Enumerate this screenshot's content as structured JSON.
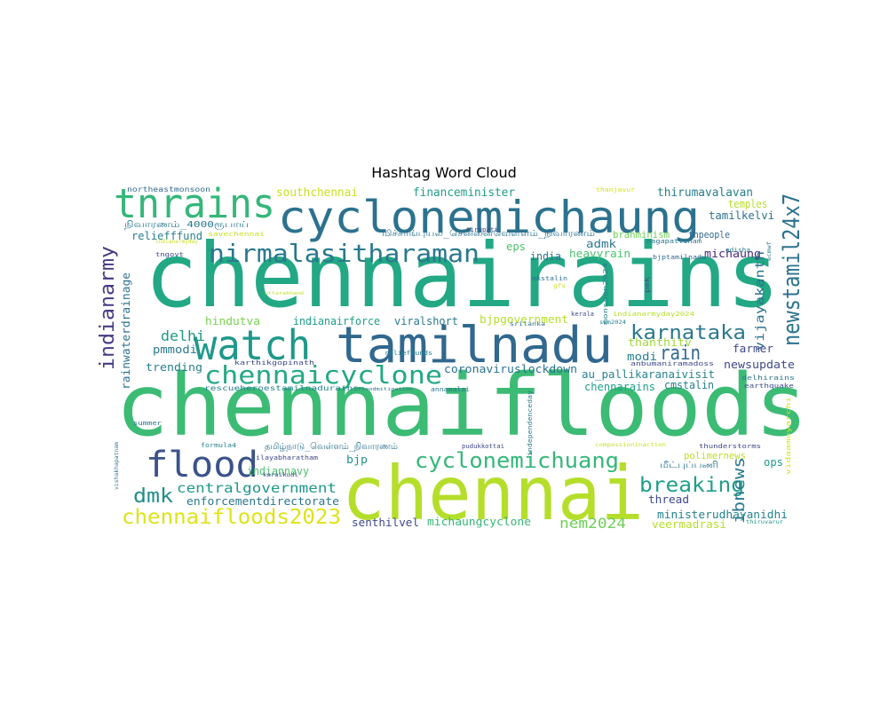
{
  "chart_data": {
    "type": "wordcloud",
    "title": "Hashtag Word Cloud",
    "words": [
      {
        "text": "chennairains",
        "color": "#22a884"
      },
      {
        "text": "chennaifloods",
        "color": "#3cbb75"
      },
      {
        "text": "chennai",
        "color": "#b5de2b"
      },
      {
        "text": "tamilnadu",
        "color": "#31688e"
      },
      {
        "text": "cyclonemichaung",
        "color": "#2c728e"
      },
      {
        "text": "watch",
        "color": "#1f988b"
      },
      {
        "text": "tnrains",
        "color": "#35b779"
      },
      {
        "text": "flood",
        "color": "#3b528b"
      },
      {
        "text": "nirmalasitharaman",
        "color": "#2a788e"
      },
      {
        "text": "chennaicyclone",
        "color": "#22a884"
      },
      {
        "text": "cyclonemichuang",
        "color": "#35b779"
      },
      {
        "text": "newstamil24x7",
        "color": "#2c728e"
      },
      {
        "text": "chennaifloods2023",
        "color": "#dde318"
      },
      {
        "text": "breaking",
        "color": "#1f9e89"
      },
      {
        "text": "karnataka",
        "color": "#2a788e"
      },
      {
        "text": "indianarmy",
        "color": "#443a83"
      },
      {
        "text": "rain",
        "color": "#31688e"
      },
      {
        "text": "dmk",
        "color": "#228c8d"
      },
      {
        "text": "centralgovernment",
        "color": "#1f988b"
      },
      {
        "text": "ibnews",
        "color": "#2a788e"
      },
      {
        "text": "nem2024",
        "color": "#6ece58"
      },
      {
        "text": "delhi",
        "color": "#1f988b"
      },
      {
        "text": "southchennai",
        "color": "#c8e020"
      },
      {
        "text": "financeminister",
        "color": "#1f9e89"
      },
      {
        "text": "thirumavalavan",
        "color": "#277f8e"
      },
      {
        "text": "tamilkelvi",
        "color": "#2c728e"
      },
      {
        "text": "temples",
        "color": "#b5de2b"
      },
      {
        "text": "brahminism",
        "color": "#6ece58"
      },
      {
        "text": "tnpeople",
        "color": "#31688e"
      },
      {
        "text": "reliefffund",
        "color": "#277f8e"
      },
      {
        "text": "eps",
        "color": "#4ac16d"
      },
      {
        "text": "india",
        "color": "#2c728e"
      },
      {
        "text": "admk",
        "color": "#2a788e"
      },
      {
        "text": "heavyrain",
        "color": "#4ac16d"
      },
      {
        "text": "michaung",
        "color": "#482878"
      },
      {
        "text": "vijayakanth",
        "color": "#2c728e"
      },
      {
        "text": "hindutva",
        "color": "#7ad151"
      },
      {
        "text": "indianairforce",
        "color": "#1f9e89"
      },
      {
        "text": "viralshort",
        "color": "#2a788e"
      },
      {
        "text": "bjpgovernment",
        "color": "#b5de2b"
      },
      {
        "text": "thanthitv",
        "color": "#a0da39"
      },
      {
        "text": "modi",
        "color": "#26828e"
      },
      {
        "text": "farmer",
        "color": "#3e4989"
      },
      {
        "text": "newsupdate",
        "color": "#3e4989"
      },
      {
        "text": "pmmodi",
        "color": "#2a788e"
      },
      {
        "text": "trending",
        "color": "#277f8e"
      },
      {
        "text": "coronaviruslockdown",
        "color": "#2c728e"
      },
      {
        "text": "au_pallikaranaivisit",
        "color": "#26828e"
      },
      {
        "text": "chennarains",
        "color": "#1f9e89"
      },
      {
        "text": "cmstalin",
        "color": "#277f8e"
      },
      {
        "text": "rainwaterdrainage",
        "color": "#2c728e"
      },
      {
        "text": "bjp",
        "color": "#21918c"
      },
      {
        "text": "indiannavy",
        "color": "#4ac16d"
      },
      {
        "text": "ops",
        "color": "#1f988b"
      },
      {
        "text": "enforcementdirectorate",
        "color": "#2a788e"
      },
      {
        "text": "thread",
        "color": "#3e4989"
      },
      {
        "text": "ministerudhayanidhi",
        "color": "#26828e"
      },
      {
        "text": "senthilvel",
        "color": "#3e4989"
      },
      {
        "text": "michaungcyclone",
        "color": "#35b779"
      },
      {
        "text": "veermadrasi",
        "color": "#b5de2b"
      },
      {
        "text": "polimernews",
        "color": "#bddf26"
      },
      {
        "text": "hashtag-tamil-rescue",
        "color": "#2c728e"
      },
      {
        "text": "hashtag-tamil-long",
        "color": "#2c728e"
      },
      {
        "text": "hashtag-tamil-short",
        "color": "#2c728e"
      },
      {
        "text": "hashtag-tamil-4000",
        "color": "#2a788e"
      },
      {
        "text": "northeastmonsoon",
        "color": "#31688e"
      },
      {
        "text": "thanjavur",
        "color": "#d2e21b"
      },
      {
        "text": "tirupati",
        "color": "#3e4989"
      },
      {
        "text": "savechennai",
        "color": "#c8e020"
      },
      {
        "text": "indianarmyday",
        "color": "#c8e020"
      },
      {
        "text": "tngovt",
        "color": "#3e4989"
      },
      {
        "text": "nagapattinam",
        "color": "#2a788e"
      },
      {
        "text": "odisha",
        "color": "#277f8e"
      },
      {
        "text": "ecmwf",
        "color": "#2a788e"
      },
      {
        "text": "bjptamilnadu",
        "color": "#31688e"
      },
      {
        "text": "mkstalin",
        "color": "#2c728e"
      },
      {
        "text": "monsoon2024",
        "color": "#26828e"
      },
      {
        "text": "pmk",
        "color": "#3b528b"
      },
      {
        "text": "gfs",
        "color": "#c8e020"
      },
      {
        "text": "uttarakhand",
        "color": "#bddf26"
      },
      {
        "text": "kerala",
        "color": "#3e4989"
      },
      {
        "text": "swm2024",
        "color": "#26828e"
      },
      {
        "text": "indianarmyday2024",
        "color": "#b5de2b"
      },
      {
        "text": "karthikgopinath",
        "color": "#3e4989"
      },
      {
        "text": "anbumaniramadoss",
        "color": "#3e4989"
      },
      {
        "text": "delhirains",
        "color": "#2c728e"
      },
      {
        "text": "earthquake",
        "color": "#3e4989"
      },
      {
        "text": "rescueheroestamilnadurains",
        "color": "#26828e"
      },
      {
        "text": "floodmitigation",
        "color": "#2c728e"
      },
      {
        "text": "annamalai",
        "color": "#2c728e"
      },
      {
        "text": "independenceday",
        "color": "#2a788e"
      },
      {
        "text": "summer",
        "color": "#2c728e"
      },
      {
        "text": "formula4",
        "color": "#26828e"
      },
      {
        "text": "ilayabharatham",
        "color": "#3e4989"
      },
      {
        "text": "karaikudi",
        "color": "#3e4989"
      },
      {
        "text": "vishakhapatnam",
        "color": "#2c728e"
      },
      {
        "text": "pudukkottai",
        "color": "#3e4989"
      },
      {
        "text": "compassioninaction",
        "color": "#c8e020"
      },
      {
        "text": "thunderstorms",
        "color": "#3e4989"
      },
      {
        "text": "vidaamuyarchi",
        "color": "#d2e21b"
      },
      {
        "text": "thiruvarur",
        "color": "#1f988b"
      },
      {
        "text": "relieffunds",
        "color": "#26828e"
      },
      {
        "text": "srilanka",
        "color": "#2c728e"
      }
    ]
  }
}
